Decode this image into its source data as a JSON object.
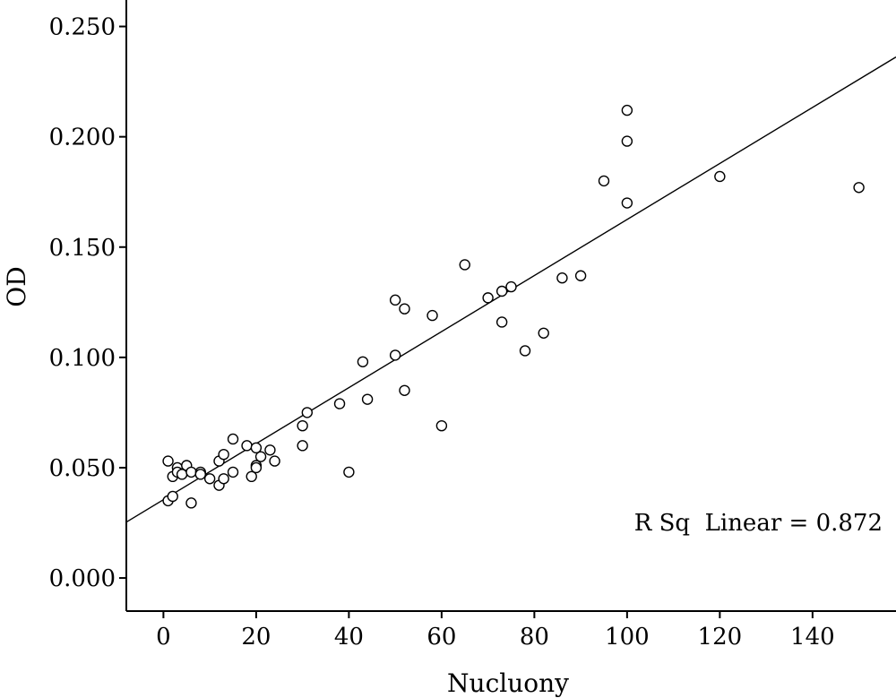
{
  "chart_data": {
    "type": "scatter",
    "title": "",
    "xlabel": "Nucluony",
    "ylabel": "OD",
    "xlim": [
      -8,
      158
    ],
    "ylim": [
      -0.015,
      0.262
    ],
    "x_ticks": [
      0,
      20,
      40,
      60,
      80,
      100,
      120,
      140
    ],
    "x_tick_labels": [
      "0",
      "20",
      "40",
      "60",
      "80",
      "100",
      "120",
      "140"
    ],
    "y_ticks": [
      0.0,
      0.05,
      0.1,
      0.15,
      0.2,
      0.25
    ],
    "y_tick_labels": [
      "0.000",
      "0.050",
      "0.100",
      "0.150",
      "0.200",
      "0.250"
    ],
    "grid": false,
    "fit_line": {
      "intercept": 0.0355,
      "slope": 0.00127,
      "label": "R Sq  Linear = 0.872"
    },
    "points": [
      {
        "x": 1,
        "y": 0.053
      },
      {
        "x": 1,
        "y": 0.035
      },
      {
        "x": 2,
        "y": 0.037
      },
      {
        "x": 2,
        "y": 0.046
      },
      {
        "x": 3,
        "y": 0.05
      },
      {
        "x": 3,
        "y": 0.048
      },
      {
        "x": 4,
        "y": 0.047
      },
      {
        "x": 5,
        "y": 0.051
      },
      {
        "x": 6,
        "y": 0.034
      },
      {
        "x": 6,
        "y": 0.048
      },
      {
        "x": 8,
        "y": 0.048
      },
      {
        "x": 8,
        "y": 0.047
      },
      {
        "x": 10,
        "y": 0.045
      },
      {
        "x": 12,
        "y": 0.042
      },
      {
        "x": 12,
        "y": 0.053
      },
      {
        "x": 13,
        "y": 0.056
      },
      {
        "x": 13,
        "y": 0.045
      },
      {
        "x": 15,
        "y": 0.063
      },
      {
        "x": 15,
        "y": 0.048
      },
      {
        "x": 18,
        "y": 0.06
      },
      {
        "x": 19,
        "y": 0.046
      },
      {
        "x": 20,
        "y": 0.059
      },
      {
        "x": 20,
        "y": 0.051
      },
      {
        "x": 20,
        "y": 0.05
      },
      {
        "x": 21,
        "y": 0.055
      },
      {
        "x": 23,
        "y": 0.058
      },
      {
        "x": 24,
        "y": 0.053
      },
      {
        "x": 30,
        "y": 0.069
      },
      {
        "x": 30,
        "y": 0.06
      },
      {
        "x": 31,
        "y": 0.075
      },
      {
        "x": 38,
        "y": 0.079
      },
      {
        "x": 40,
        "y": 0.048
      },
      {
        "x": 43,
        "y": 0.098
      },
      {
        "x": 44,
        "y": 0.081
      },
      {
        "x": 50,
        "y": 0.126
      },
      {
        "x": 50,
        "y": 0.101
      },
      {
        "x": 52,
        "y": 0.122
      },
      {
        "x": 52,
        "y": 0.085
      },
      {
        "x": 58,
        "y": 0.119
      },
      {
        "x": 60,
        "y": 0.069
      },
      {
        "x": 65,
        "y": 0.142
      },
      {
        "x": 70,
        "y": 0.127
      },
      {
        "x": 73,
        "y": 0.13
      },
      {
        "x": 73,
        "y": 0.116
      },
      {
        "x": 75,
        "y": 0.132
      },
      {
        "x": 78,
        "y": 0.103
      },
      {
        "x": 82,
        "y": 0.111
      },
      {
        "x": 86,
        "y": 0.136
      },
      {
        "x": 90,
        "y": 0.137
      },
      {
        "x": 95,
        "y": 0.18
      },
      {
        "x": 100,
        "y": 0.212
      },
      {
        "x": 100,
        "y": 0.198
      },
      {
        "x": 100,
        "y": 0.17
      },
      {
        "x": 120,
        "y": 0.182
      },
      {
        "x": 150,
        "y": 0.177
      }
    ]
  }
}
